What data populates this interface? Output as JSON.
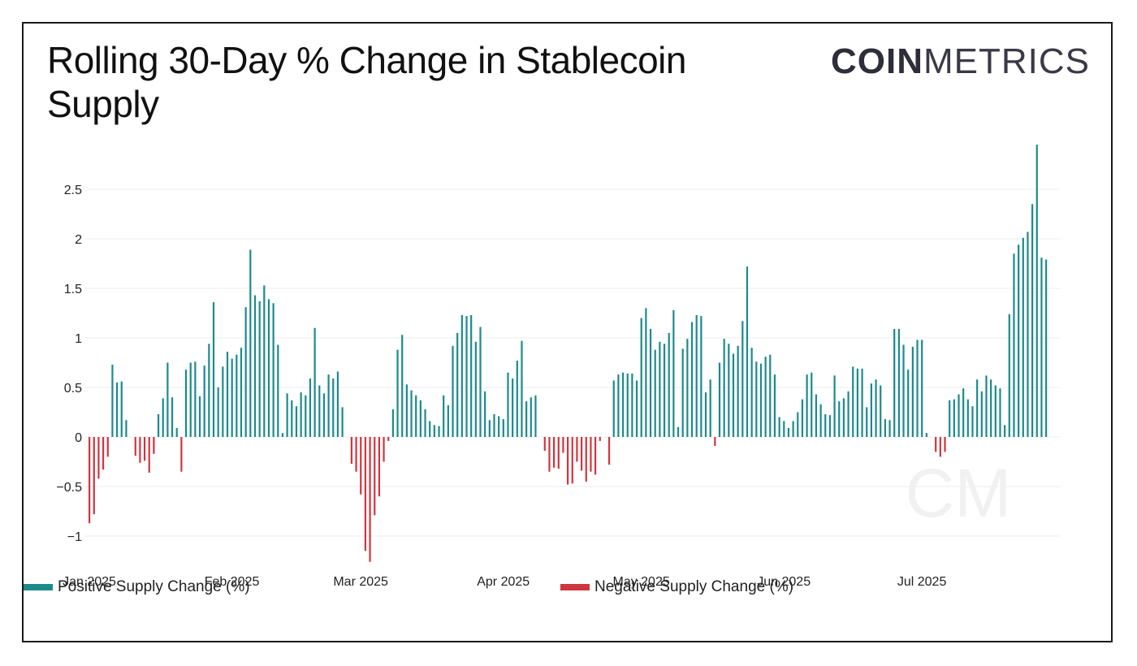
{
  "title": "Rolling 30-Day % Change in Stablecoin Supply",
  "logo": {
    "strong": "COIN",
    "light": "METRICS"
  },
  "watermark": "CM",
  "colors": {
    "positive": "#1d8a8a",
    "negative": "#d0353f",
    "grid": "#ececec",
    "text": "#222222"
  },
  "legend": {
    "positive": "Positive Supply Change (%)",
    "negative": "Negative Supply Change (%)"
  },
  "chart_data": {
    "type": "bar",
    "title": "Rolling 30-Day % Change in Stablecoin Supply",
    "xlabel": "",
    "ylabel": "",
    "ylim": [
      -1.3,
      3.0
    ],
    "y_ticks": [
      -1,
      -0.5,
      0,
      0.5,
      1,
      1.5,
      2,
      2.5
    ],
    "y_tick_labels": [
      "−1",
      "−0.5",
      "0",
      "0.5",
      "1",
      "1.5",
      "2",
      "2.5"
    ],
    "x_ticks": [
      {
        "date": "2025-01-01",
        "label": "Jan 2025"
      },
      {
        "date": "2025-02-01",
        "label": "Feb 2025"
      },
      {
        "date": "2025-03-01",
        "label": "Mar 2025"
      },
      {
        "date": "2025-04-01",
        "label": "Apr 2025"
      },
      {
        "date": "2025-05-01",
        "label": "May 2025"
      },
      {
        "date": "2025-06-01",
        "label": "Jun 2025"
      },
      {
        "date": "2025-07-01",
        "label": "Jul 2025"
      }
    ],
    "grid": true,
    "legend_position": "bottom",
    "series": [
      {
        "name": "Positive Supply Change (%)",
        "color": "#1d8a8a"
      },
      {
        "name": "Negative Supply Change (%)",
        "color": "#d0353f"
      }
    ],
    "x_start": "2025-01-01",
    "x_end": "2025-07-31",
    "points": [
      [
        "2025-01-01",
        -0.87
      ],
      [
        "2025-01-02",
        -0.78
      ],
      [
        "2025-01-03",
        -0.42
      ],
      [
        "2025-01-04",
        -0.33
      ],
      [
        "2025-01-05",
        -0.2
      ],
      [
        "2025-01-06",
        0.73
      ],
      [
        "2025-01-07",
        0.55
      ],
      [
        "2025-01-08",
        0.56
      ],
      [
        "2025-01-09",
        0.17
      ],
      [
        "2025-01-11",
        -0.19
      ],
      [
        "2025-01-12",
        -0.26
      ],
      [
        "2025-01-13",
        -0.24
      ],
      [
        "2025-01-14",
        -0.36
      ],
      [
        "2025-01-15",
        -0.17
      ],
      [
        "2025-01-16",
        0.23
      ],
      [
        "2025-01-17",
        0.39
      ],
      [
        "2025-01-18",
        0.75
      ],
      [
        "2025-01-19",
        0.4
      ],
      [
        "2025-01-20",
        0.09
      ],
      [
        "2025-01-21",
        -0.35
      ],
      [
        "2025-01-22",
        0.68
      ],
      [
        "2025-01-23",
        0.75
      ],
      [
        "2025-01-24",
        0.76
      ],
      [
        "2025-01-25",
        0.41
      ],
      [
        "2025-01-26",
        0.72
      ],
      [
        "2025-01-27",
        0.94
      ],
      [
        "2025-01-28",
        1.36
      ],
      [
        "2025-01-29",
        0.5
      ],
      [
        "2025-01-30",
        0.71
      ],
      [
        "2025-01-31",
        0.86
      ],
      [
        "2025-02-01",
        0.79
      ],
      [
        "2025-02-02",
        0.83
      ],
      [
        "2025-02-03",
        0.9
      ],
      [
        "2025-02-04",
        1.31
      ],
      [
        "2025-02-05",
        1.89
      ],
      [
        "2025-02-06",
        1.43
      ],
      [
        "2025-02-07",
        1.37
      ],
      [
        "2025-02-08",
        1.53
      ],
      [
        "2025-02-09",
        1.39
      ],
      [
        "2025-02-10",
        1.35
      ],
      [
        "2025-02-11",
        0.93
      ],
      [
        "2025-02-12",
        0.04
      ],
      [
        "2025-02-13",
        0.44
      ],
      [
        "2025-02-14",
        0.37
      ],
      [
        "2025-02-15",
        0.31
      ],
      [
        "2025-02-16",
        0.45
      ],
      [
        "2025-02-17",
        0.42
      ],
      [
        "2025-02-18",
        0.59
      ],
      [
        "2025-02-19",
        1.1
      ],
      [
        "2025-02-20",
        0.52
      ],
      [
        "2025-02-21",
        0.44
      ],
      [
        "2025-02-22",
        0.63
      ],
      [
        "2025-02-23",
        0.59
      ],
      [
        "2025-02-24",
        0.66
      ],
      [
        "2025-02-25",
        0.3
      ],
      [
        "2025-02-27",
        -0.27
      ],
      [
        "2025-02-28",
        -0.35
      ],
      [
        "2025-03-01",
        -0.58
      ],
      [
        "2025-03-02",
        -1.15
      ],
      [
        "2025-03-03",
        -1.26
      ],
      [
        "2025-03-04",
        -0.79
      ],
      [
        "2025-03-05",
        -0.6
      ],
      [
        "2025-03-06",
        -0.25
      ],
      [
        "2025-03-07",
        -0.04
      ],
      [
        "2025-03-08",
        0.28
      ],
      [
        "2025-03-09",
        0.88
      ],
      [
        "2025-03-10",
        1.03
      ],
      [
        "2025-03-11",
        0.53
      ],
      [
        "2025-03-12",
        0.47
      ],
      [
        "2025-03-13",
        0.42
      ],
      [
        "2025-03-14",
        0.37
      ],
      [
        "2025-03-15",
        0.28
      ],
      [
        "2025-03-16",
        0.16
      ],
      [
        "2025-03-17",
        0.12
      ],
      [
        "2025-03-18",
        0.11
      ],
      [
        "2025-03-19",
        0.42
      ],
      [
        "2025-03-20",
        0.32
      ],
      [
        "2025-03-21",
        0.92
      ],
      [
        "2025-03-22",
        1.05
      ],
      [
        "2025-03-23",
        1.23
      ],
      [
        "2025-03-24",
        1.22
      ],
      [
        "2025-03-25",
        1.23
      ],
      [
        "2025-03-26",
        0.96
      ],
      [
        "2025-03-27",
        1.11
      ],
      [
        "2025-03-28",
        0.46
      ],
      [
        "2025-03-29",
        0.17
      ],
      [
        "2025-03-30",
        0.23
      ],
      [
        "2025-03-31",
        0.21
      ],
      [
        "2025-04-01",
        0.18
      ],
      [
        "2025-04-02",
        0.65
      ],
      [
        "2025-04-03",
        0.59
      ],
      [
        "2025-04-04",
        0.77
      ],
      [
        "2025-04-05",
        0.97
      ],
      [
        "2025-04-06",
        0.36
      ],
      [
        "2025-04-07",
        0.4
      ],
      [
        "2025-04-08",
        0.42
      ],
      [
        "2025-04-10",
        -0.14
      ],
      [
        "2025-04-11",
        -0.35
      ],
      [
        "2025-04-12",
        -0.31
      ],
      [
        "2025-04-13",
        -0.32
      ],
      [
        "2025-04-14",
        -0.16
      ],
      [
        "2025-04-15",
        -0.48
      ],
      [
        "2025-04-16",
        -0.47
      ],
      [
        "2025-04-17",
        -0.25
      ],
      [
        "2025-04-18",
        -0.34
      ],
      [
        "2025-04-19",
        -0.45
      ],
      [
        "2025-04-20",
        -0.35
      ],
      [
        "2025-04-21",
        -0.38
      ],
      [
        "2025-04-22",
        -0.04
      ],
      [
        "2025-04-24",
        -0.28
      ],
      [
        "2025-04-25",
        0.57
      ],
      [
        "2025-04-26",
        0.63
      ],
      [
        "2025-04-27",
        0.65
      ],
      [
        "2025-04-28",
        0.64
      ],
      [
        "2025-04-29",
        0.64
      ],
      [
        "2025-04-30",
        0.57
      ],
      [
        "2025-05-01",
        1.2
      ],
      [
        "2025-05-02",
        1.3
      ],
      [
        "2025-05-03",
        1.09
      ],
      [
        "2025-05-04",
        0.88
      ],
      [
        "2025-05-05",
        0.96
      ],
      [
        "2025-05-06",
        0.94
      ],
      [
        "2025-05-07",
        1.05
      ],
      [
        "2025-05-08",
        1.28
      ],
      [
        "2025-05-09",
        0.1
      ],
      [
        "2025-05-10",
        0.89
      ],
      [
        "2025-05-11",
        0.99
      ],
      [
        "2025-05-12",
        1.16
      ],
      [
        "2025-05-13",
        1.23
      ],
      [
        "2025-05-14",
        1.22
      ],
      [
        "2025-05-15",
        0.45
      ],
      [
        "2025-05-16",
        0.58
      ],
      [
        "2025-05-17",
        -0.09
      ],
      [
        "2025-05-18",
        0.75
      ],
      [
        "2025-05-19",
        0.99
      ],
      [
        "2025-05-20",
        0.94
      ],
      [
        "2025-05-21",
        0.84
      ],
      [
        "2025-05-22",
        0.92
      ],
      [
        "2025-05-23",
        1.17
      ],
      [
        "2025-05-24",
        1.72
      ],
      [
        "2025-05-25",
        0.9
      ],
      [
        "2025-05-26",
        0.76
      ],
      [
        "2025-05-27",
        0.74
      ],
      [
        "2025-05-28",
        0.81
      ],
      [
        "2025-05-29",
        0.83
      ],
      [
        "2025-05-30",
        0.63
      ],
      [
        "2025-05-31",
        0.2
      ],
      [
        "2025-06-01",
        0.16
      ],
      [
        "2025-06-02",
        0.09
      ],
      [
        "2025-06-03",
        0.16
      ],
      [
        "2025-06-04",
        0.25
      ],
      [
        "2025-06-05",
        0.38
      ],
      [
        "2025-06-06",
        0.63
      ],
      [
        "2025-06-07",
        0.65
      ],
      [
        "2025-06-08",
        0.43
      ],
      [
        "2025-06-09",
        0.33
      ],
      [
        "2025-06-10",
        0.23
      ],
      [
        "2025-06-11",
        0.22
      ],
      [
        "2025-06-12",
        0.62
      ],
      [
        "2025-06-13",
        0.36
      ],
      [
        "2025-06-14",
        0.39
      ],
      [
        "2025-06-15",
        0.46
      ],
      [
        "2025-06-16",
        0.71
      ],
      [
        "2025-06-17",
        0.69
      ],
      [
        "2025-06-18",
        0.69
      ],
      [
        "2025-06-19",
        0.3
      ],
      [
        "2025-06-20",
        0.54
      ],
      [
        "2025-06-21",
        0.58
      ],
      [
        "2025-06-22",
        0.52
      ],
      [
        "2025-06-23",
        0.18
      ],
      [
        "2025-06-24",
        0.17
      ],
      [
        "2025-06-25",
        1.09
      ],
      [
        "2025-06-26",
        1.09
      ],
      [
        "2025-06-27",
        0.93
      ],
      [
        "2025-06-28",
        0.68
      ],
      [
        "2025-06-29",
        0.91
      ],
      [
        "2025-06-30",
        0.98
      ],
      [
        "2025-07-01",
        0.98
      ],
      [
        "2025-07-02",
        0.04
      ],
      [
        "2025-07-04",
        -0.15
      ],
      [
        "2025-07-05",
        -0.2
      ],
      [
        "2025-07-06",
        -0.15
      ],
      [
        "2025-07-07",
        0.37
      ],
      [
        "2025-07-08",
        0.38
      ],
      [
        "2025-07-09",
        0.43
      ],
      [
        "2025-07-10",
        0.49
      ],
      [
        "2025-07-11",
        0.38
      ],
      [
        "2025-07-12",
        0.31
      ],
      [
        "2025-07-13",
        0.58
      ],
      [
        "2025-07-14",
        0.46
      ],
      [
        "2025-07-15",
        0.62
      ],
      [
        "2025-07-16",
        0.58
      ],
      [
        "2025-07-17",
        0.52
      ],
      [
        "2025-07-18",
        0.49
      ],
      [
        "2025-07-19",
        0.12
      ],
      [
        "2025-07-20",
        1.24
      ],
      [
        "2025-07-21",
        1.85
      ],
      [
        "2025-07-22",
        1.94
      ],
      [
        "2025-07-23",
        2.01
      ],
      [
        "2025-07-24",
        2.07
      ],
      [
        "2025-07-25",
        2.35
      ],
      [
        "2025-07-26",
        2.95
      ],
      [
        "2025-07-27",
        1.81
      ],
      [
        "2025-07-28",
        1.79
      ]
    ]
  }
}
